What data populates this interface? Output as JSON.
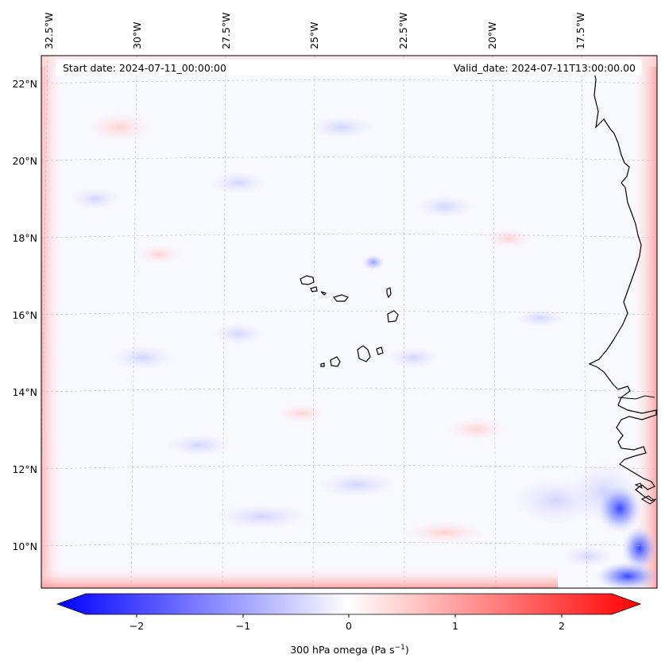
{
  "map": {
    "start_date_text": "Start date: 2024-07-11_00:00:00",
    "valid_date_text": "Valid_date: 2024-07-11T13:00:00.00",
    "lon_labels": [
      "32.5°W",
      "30°W",
      "27.5°W",
      "25°W",
      "22.5°W",
      "20°W",
      "17.5°W"
    ],
    "lat_labels": [
      "22°N",
      "20°N",
      "18°N",
      "16°N",
      "14°N",
      "12°N",
      "10°N"
    ],
    "field": "300 hPa omega",
    "colormap": "bwr",
    "background_color": "#f8f8ff",
    "coastline_color": "#000000"
  },
  "colorbar": {
    "ticks": [
      "−2",
      "−1",
      "0",
      "1",
      "2"
    ],
    "label_main": "300 hPa omega (Pa s",
    "label_exp": "−1",
    "label_close": ")",
    "min_color": "#0000ff",
    "mid_color": "#ffffff",
    "max_color": "#ff0000",
    "range": [
      -2.75,
      2.75
    ]
  }
}
